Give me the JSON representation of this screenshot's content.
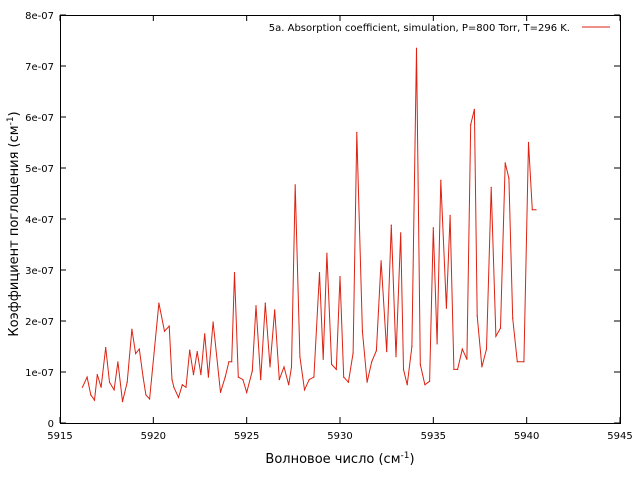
{
  "chart_data": {
    "type": "line",
    "xlabel": "Волновое число (см",
    "xlabel_sup": "-1",
    "xlabel_end": ")",
    "ylabel": "Коэффициент поглощения (см",
    "ylabel_sup": "-1",
    "ylabel_end": ")",
    "xlim": [
      5915,
      5945
    ],
    "ylim": [
      0,
      8e-07
    ],
    "x_ticks": [
      "5915",
      "5920",
      "5925",
      "5930",
      "5935",
      "5940",
      "5945"
    ],
    "y_ticks": [
      "0",
      "1e-07",
      "2e-07",
      "3e-07",
      "4e-07",
      "5e-07",
      "6e-07",
      "7e-07",
      "8e-07"
    ],
    "grid": false,
    "legend_position": "top-right",
    "colors": {
      "series": "#dd2211"
    },
    "series": [
      {
        "name": "5a. Absorption coefficient, simulation, P=800 Torr, T=296 K.",
        "x": [
          5916.2,
          5916.45,
          5916.65,
          5916.85,
          5917.0,
          5917.2,
          5917.45,
          5917.65,
          5917.9,
          5918.1,
          5918.35,
          5918.6,
          5918.85,
          5919.05,
          5919.25,
          5919.45,
          5919.6,
          5919.8,
          5920.3,
          5920.6,
          5920.85,
          5921.0,
          5921.1,
          5921.35,
          5921.55,
          5921.75,
          5921.95,
          5922.15,
          5922.35,
          5922.55,
          5922.75,
          5922.95,
          5923.2,
          5923.6,
          5923.85,
          5924.05,
          5924.2,
          5924.35,
          5924.55,
          5924.8,
          5925.0,
          5925.3,
          5925.5,
          5925.75,
          5926.0,
          5926.25,
          5926.5,
          5926.75,
          5927.0,
          5927.25,
          5927.4,
          5927.6,
          5927.85,
          5928.1,
          5928.35,
          5928.6,
          5928.9,
          5929.1,
          5929.3,
          5929.55,
          5929.8,
          5930.0,
          5930.2,
          5930.45,
          5930.7,
          5930.9,
          5931.2,
          5931.45,
          5931.7,
          5931.95,
          5932.2,
          5932.5,
          5932.75,
          5933.0,
          5933.25,
          5933.4,
          5933.6,
          5933.85,
          5934.1,
          5934.3,
          5934.55,
          5934.8,
          5935.0,
          5935.2,
          5935.4,
          5935.7,
          5935.9,
          5936.1,
          5936.3,
          5936.55,
          5936.8,
          5937.0,
          5937.2,
          5937.35,
          5937.6,
          5937.85,
          5938.1,
          5938.35,
          5938.6,
          5938.85,
          5939.05,
          5939.25,
          5939.5,
          5939.85,
          5940.1,
          5940.3,
          5940.5
        ],
        "values": [
          7e-08,
          9e-08,
          5.5e-08,
          4.5e-08,
          9.5e-08,
          7e-08,
          1.48e-07,
          8e-08,
          6.5e-08,
          1.2e-07,
          4.2e-08,
          8e-08,
          1.84e-07,
          1.36e-07,
          1.45e-07,
          9e-08,
          5.5e-08,
          4.7e-08,
          2.35e-07,
          1.8e-07,
          1.9e-07,
          8.5e-08,
          7e-08,
          5e-08,
          7.5e-08,
          7e-08,
          1.43e-07,
          9.5e-08,
          1.4e-07,
          9.5e-08,
          1.75e-07,
          9e-08,
          1.98e-07,
          6e-08,
          9e-08,
          1.2e-07,
          1.2e-07,
          2.95e-07,
          9e-08,
          8.5e-08,
          6e-08,
          1.02e-07,
          2.3e-07,
          8.5e-08,
          2.35e-07,
          1.1e-07,
          2.22e-07,
          8.5e-08,
          1.1e-07,
          7.5e-08,
          1.1e-07,
          4.67e-07,
          1.3e-07,
          6.5e-08,
          8.5e-08,
          9e-08,
          2.95e-07,
          1.25e-07,
          3.33e-07,
          1.15e-07,
          1.05e-07,
          2.87e-07,
          9e-08,
          8e-08,
          1.37e-07,
          5.7e-07,
          1.8e-07,
          8e-08,
          1.2e-07,
          1.42e-07,
          3.18e-07,
          1.4e-07,
          3.88e-07,
          1.3e-07,
          3.73e-07,
          1.05e-07,
          7.5e-08,
          1.5e-07,
          7.35e-07,
          1.15e-07,
          7.5e-08,
          8.2e-08,
          3.83e-07,
          1.55e-07,
          4.76e-07,
          2.25e-07,
          4.07e-07,
          1.05e-07,
          1.05e-07,
          1.45e-07,
          1.25e-07,
          5.85e-07,
          6.15e-07,
          2.1e-07,
          1.1e-07,
          1.45e-07,
          4.62e-07,
          1.7e-07,
          1.86e-07,
          5.1e-07,
          4.8e-07,
          2.05e-07,
          1.2e-07,
          1.2e-07,
          5.5e-07,
          4.18e-07,
          4.18e-07
        ]
      }
    ]
  }
}
